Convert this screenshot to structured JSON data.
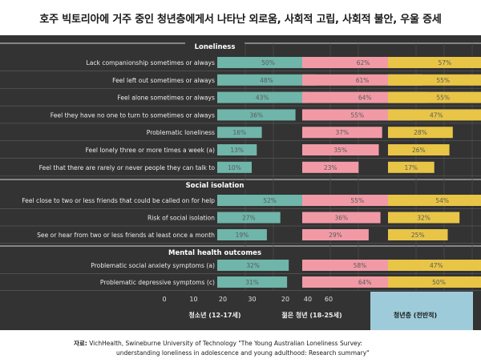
{
  "title": "호주 빅토리아에 거주 중인 청년층에게서 나타난 외로움, 사회적 고립, 사회적 불안, 우울 증세",
  "groups": [
    {
      "name": "청소년 (12-17세)",
      "color": "#6fb5a9"
    },
    {
      "name": "젊은 청년 (18-25세)",
      "color": "#f19aa6"
    },
    {
      "name": "청년층 (전반적)",
      "color": "#e8c547"
    }
  ],
  "axis_ticks": [
    "0",
    "10",
    "20",
    "30"
  ],
  "source_label": "자료:",
  "source_line1": "VichHealth, Swineburne University of Technology \"The Young Australian Loneliness Survey:",
  "source_line2": "understanding loneliness in adolescence and young adulthood: Research summary\"",
  "chart_data": {
    "type": "bar",
    "orientation": "horizontal",
    "x_tick_values": [
      0,
      10,
      20,
      30
    ],
    "grid": true,
    "sections": [
      {
        "title": "Loneliness",
        "categories": [
          "Lack companionship sometimes or always",
          "Feel left out sometimes or always",
          "Feel alone sometimes or always",
          "Feel they have no one to turn to sometimes or always",
          "Problematic loneliness",
          "Feel lonely three or more times a week (a)",
          "Feel that there are rarely or never people they can talk to"
        ],
        "series": [
          {
            "name": "청소년 (12-17세)",
            "values": [
              50,
              48,
              43,
              36,
              16,
              13,
              10
            ]
          },
          {
            "name": "젊은 청년 (18-25세)",
            "values": [
              62,
              61,
              64,
              55,
              37,
              35,
              23
            ]
          },
          {
            "name": "청년층 (전반적)",
            "values": [
              57,
              55,
              55,
              47,
              28,
              26,
              17
            ]
          }
        ]
      },
      {
        "title": "Social isolation",
        "categories": [
          "Feel close to two or less friends that could be called on for help",
          "Risk of social isolation",
          "See or hear from two or less friends at least once a month"
        ],
        "series": [
          {
            "name": "청소년 (12-17세)",
            "values": [
              52,
              27,
              19
            ]
          },
          {
            "name": "젊은 청년 (18-25세)",
            "values": [
              55,
              36,
              29
            ]
          },
          {
            "name": "청년층 (전반적)",
            "values": [
              54,
              32,
              25
            ]
          }
        ]
      },
      {
        "title": "Mental health outcomes",
        "categories": [
          "Problematic social anxiety symptoms (a)",
          "Problematic depressive symptoms (c)"
        ],
        "series": [
          {
            "name": "청소년 (12-17세)",
            "values": [
              32,
              31
            ]
          },
          {
            "name": "젊은 청년 (18-25세)",
            "values": [
              58,
              64
            ]
          },
          {
            "name": "청년층 (전반적)",
            "values": [
              47,
              50
            ]
          }
        ]
      }
    ]
  }
}
